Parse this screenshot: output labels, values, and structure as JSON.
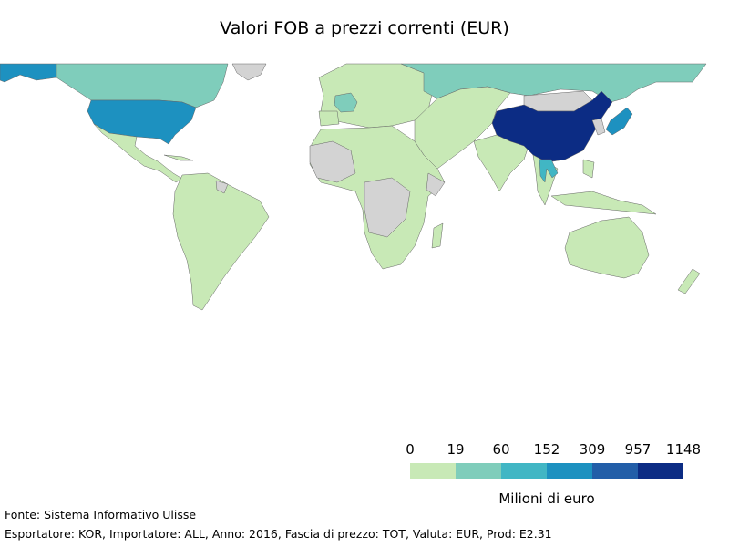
{
  "title": "Valori FOB a prezzi correnti (EUR)",
  "legend": {
    "ticks": [
      "0",
      "19",
      "60",
      "152",
      "309",
      "957",
      "1148"
    ],
    "colors": [
      "#c8e9b6",
      "#7fcdbb",
      "#41b6c4",
      "#1d91c0",
      "#225ea8",
      "#0c2c84"
    ],
    "no_data_color": "#d3d3d3",
    "label": "Milioni di euro"
  },
  "footer": {
    "source": "Fonte: Sistema Informativo Ulisse",
    "details": "Esportatore: KOR, Importatore: ALL, Anno: 2016, Fascia di prezzo: TOT, Valuta: EUR, Prod: E2.31"
  },
  "map_regions": [
    {
      "name": "china",
      "class": 5
    },
    {
      "name": "usa",
      "class": 3
    },
    {
      "name": "alaska",
      "class": 3
    },
    {
      "name": "canada",
      "class": 1
    },
    {
      "name": "russia",
      "class": 1
    },
    {
      "name": "japan",
      "class": 3
    },
    {
      "name": "vietnam-thailand",
      "class": 2
    },
    {
      "name": "france",
      "class": 1
    },
    {
      "name": "greenland",
      "class": -1
    },
    {
      "name": "mongolia",
      "class": -1
    }
  ]
}
